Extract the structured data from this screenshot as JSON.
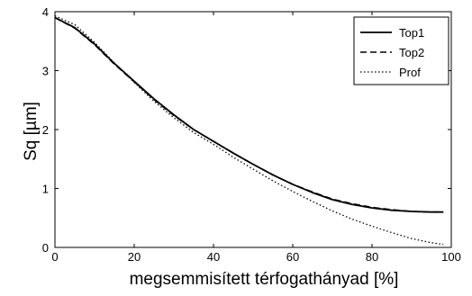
{
  "chart_data": {
    "type": "line",
    "title": "",
    "xlabel": "megsemmisített térfogathányad [%]",
    "ylabel": "Sq [µm]",
    "xlim": [
      0,
      100
    ],
    "ylim": [
      0,
      4
    ],
    "xticks": [
      0,
      20,
      40,
      60,
      80,
      100
    ],
    "yticks": [
      0,
      1,
      2,
      3,
      4
    ],
    "grid": false,
    "legend_position": "top-right",
    "series": [
      {
        "name": "Top1",
        "style": "solid",
        "color": "#000000",
        "x": [
          0,
          5,
          10,
          15,
          20,
          25,
          30,
          35,
          40,
          45,
          50,
          55,
          60,
          65,
          70,
          75,
          80,
          85,
          90,
          95,
          98
        ],
        "y": [
          3.9,
          3.73,
          3.45,
          3.12,
          2.82,
          2.52,
          2.25,
          2.0,
          1.8,
          1.6,
          1.41,
          1.23,
          1.07,
          0.93,
          0.81,
          0.73,
          0.67,
          0.63,
          0.61,
          0.6,
          0.6
        ]
      },
      {
        "name": "Top2",
        "style": "dashed",
        "color": "#000000",
        "x": [
          0,
          5,
          10,
          15,
          20,
          25,
          30,
          35,
          40,
          45,
          50,
          55,
          60,
          65,
          70,
          75,
          80,
          85,
          90,
          95,
          98
        ],
        "y": [
          3.9,
          3.72,
          3.44,
          3.11,
          2.81,
          2.51,
          2.24,
          2.0,
          1.8,
          1.6,
          1.41,
          1.23,
          1.07,
          0.94,
          0.82,
          0.74,
          0.68,
          0.64,
          0.61,
          0.6,
          0.6
        ]
      },
      {
        "name": "Prof",
        "style": "dotted",
        "color": "#000000",
        "x": [
          0,
          5,
          10,
          15,
          20,
          25,
          30,
          35,
          40,
          45,
          50,
          55,
          60,
          65,
          70,
          75,
          80,
          85,
          90,
          95,
          98
        ],
        "y": [
          3.93,
          3.78,
          3.48,
          3.13,
          2.8,
          2.48,
          2.2,
          1.95,
          1.75,
          1.53,
          1.33,
          1.13,
          0.95,
          0.78,
          0.62,
          0.48,
          0.36,
          0.25,
          0.15,
          0.08,
          0.05
        ]
      }
    ]
  }
}
